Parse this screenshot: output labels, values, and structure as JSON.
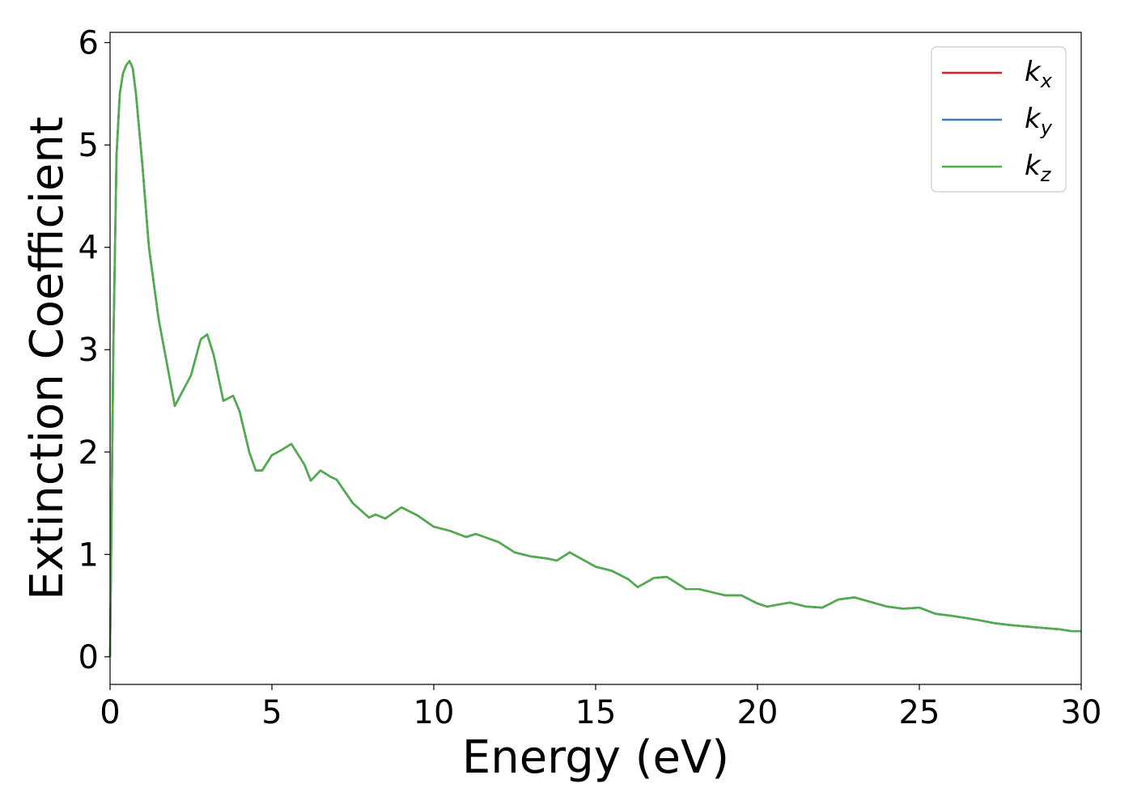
{
  "chart_data": {
    "type": "line",
    "title": "",
    "xlabel": "Energy (eV)",
    "ylabel": "Extinction Coefficient",
    "xlim": [
      0,
      30
    ],
    "ylim": [
      -0.27,
      6.1
    ],
    "xticks": [
      0,
      5,
      10,
      15,
      20,
      25,
      30
    ],
    "xtick_labels": [
      "0",
      "5",
      "10",
      "15",
      "20",
      "25",
      "30"
    ],
    "yticks": [
      0,
      1,
      2,
      3,
      4,
      5,
      6
    ],
    "ytick_labels": [
      "0",
      "1",
      "2",
      "3",
      "4",
      "5",
      "6"
    ],
    "grid": false,
    "legend_position": "top-right",
    "x": [
      0,
      0.1,
      0.2,
      0.3,
      0.4,
      0.5,
      0.6,
      0.7,
      0.8,
      1.0,
      1.2,
      1.5,
      2.0,
      2.5,
      2.8,
      3.0,
      3.2,
      3.5,
      3.8,
      4.0,
      4.3,
      4.5,
      4.7,
      5.0,
      5.3,
      5.6,
      6.0,
      6.2,
      6.5,
      6.8,
      7.0,
      7.5,
      8.0,
      8.2,
      8.5,
      9.0,
      9.5,
      10.0,
      10.5,
      11.0,
      11.3,
      12.0,
      12.5,
      13.0,
      13.5,
      13.8,
      14.2,
      15.0,
      15.5,
      16.0,
      16.3,
      16.8,
      17.2,
      17.8,
      18.2,
      19.0,
      19.5,
      20.0,
      20.3,
      21.0,
      21.5,
      22.0,
      22.5,
      23.0,
      24.0,
      24.5,
      25.0,
      25.5,
      26.0,
      26.8,
      27.3,
      27.8,
      28.5,
      29.3,
      29.7,
      30.0
    ],
    "series": [
      {
        "name": "k_x",
        "label_main": "k",
        "label_sub": "x",
        "color": "#e41a1c",
        "values": [
          0.0,
          3.0,
          4.9,
          5.5,
          5.7,
          5.78,
          5.82,
          5.75,
          5.5,
          4.8,
          4.0,
          3.3,
          2.45,
          2.75,
          3.1,
          3.15,
          2.95,
          2.5,
          2.55,
          2.4,
          2.0,
          1.82,
          1.82,
          1.97,
          2.02,
          2.08,
          1.88,
          1.72,
          1.82,
          1.76,
          1.73,
          1.5,
          1.36,
          1.39,
          1.35,
          1.46,
          1.38,
          1.27,
          1.23,
          1.17,
          1.2,
          1.12,
          1.02,
          0.98,
          0.96,
          0.94,
          1.02,
          0.88,
          0.84,
          0.76,
          0.68,
          0.77,
          0.78,
          0.66,
          0.66,
          0.6,
          0.6,
          0.52,
          0.49,
          0.53,
          0.49,
          0.48,
          0.56,
          0.58,
          0.49,
          0.47,
          0.48,
          0.42,
          0.4,
          0.36,
          0.33,
          0.31,
          0.29,
          0.27,
          0.25,
          0.25
        ]
      },
      {
        "name": "k_y",
        "label_main": "k",
        "label_sub": "y",
        "color": "#377eb8",
        "values": [
          0.0,
          3.0,
          4.9,
          5.5,
          5.7,
          5.78,
          5.82,
          5.75,
          5.5,
          4.8,
          4.0,
          3.3,
          2.45,
          2.75,
          3.1,
          3.15,
          2.95,
          2.5,
          2.55,
          2.4,
          2.0,
          1.82,
          1.82,
          1.97,
          2.02,
          2.08,
          1.88,
          1.72,
          1.82,
          1.76,
          1.73,
          1.5,
          1.36,
          1.39,
          1.35,
          1.46,
          1.38,
          1.27,
          1.23,
          1.17,
          1.2,
          1.12,
          1.02,
          0.98,
          0.96,
          0.94,
          1.02,
          0.88,
          0.84,
          0.76,
          0.68,
          0.77,
          0.78,
          0.66,
          0.66,
          0.6,
          0.6,
          0.52,
          0.49,
          0.53,
          0.49,
          0.48,
          0.56,
          0.58,
          0.49,
          0.47,
          0.48,
          0.42,
          0.4,
          0.36,
          0.33,
          0.31,
          0.29,
          0.27,
          0.25,
          0.25
        ]
      },
      {
        "name": "k_z",
        "label_main": "k",
        "label_sub": "z",
        "color": "#4daf4a",
        "values": [
          0.0,
          3.0,
          4.9,
          5.5,
          5.7,
          5.78,
          5.82,
          5.75,
          5.5,
          4.8,
          4.0,
          3.3,
          2.45,
          2.75,
          3.1,
          3.15,
          2.95,
          2.5,
          2.55,
          2.4,
          2.0,
          1.82,
          1.82,
          1.97,
          2.02,
          2.08,
          1.88,
          1.72,
          1.82,
          1.76,
          1.73,
          1.5,
          1.36,
          1.39,
          1.35,
          1.46,
          1.38,
          1.27,
          1.23,
          1.17,
          1.2,
          1.12,
          1.02,
          0.98,
          0.96,
          0.94,
          1.02,
          0.88,
          0.84,
          0.76,
          0.68,
          0.77,
          0.78,
          0.66,
          0.66,
          0.6,
          0.6,
          0.52,
          0.49,
          0.53,
          0.49,
          0.48,
          0.56,
          0.58,
          0.49,
          0.47,
          0.48,
          0.42,
          0.4,
          0.36,
          0.33,
          0.31,
          0.29,
          0.27,
          0.25,
          0.25
        ]
      }
    ]
  }
}
